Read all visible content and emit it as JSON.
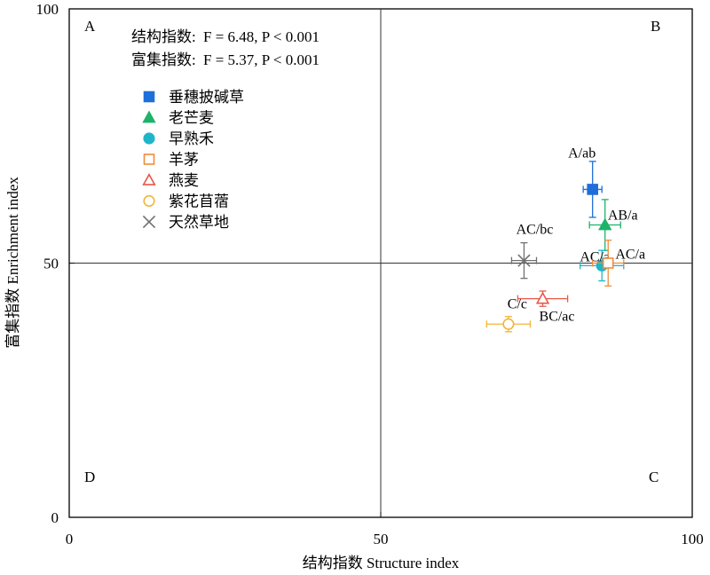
{
  "chart_data": {
    "type": "scatter",
    "xlabel": "结构指数 Structure index",
    "ylabel": "富集指数 Enrichment index",
    "xlim": [
      0,
      100
    ],
    "ylim": [
      0,
      100
    ],
    "x_ticks": [
      "0",
      "50",
      "100"
    ],
    "y_ticks": [
      "0",
      "50",
      "100"
    ],
    "reference_lines": {
      "x": 50,
      "y": 50
    },
    "quadrant_labels": [
      "A",
      "B",
      "C",
      "D"
    ],
    "stats": [
      {
        "label": "结构指数:",
        "text": "F = 6.48, P < 0.001"
      },
      {
        "label": "富集指数:",
        "text": "F = 5.37, P < 0.001"
      }
    ],
    "legend_position": "upper-left",
    "series": [
      {
        "name": "垂穗披碱草",
        "marker": "square",
        "filled": true,
        "color": "#1E6FD9",
        "x": 84.0,
        "y": 64.5,
        "xerr": 1.5,
        "yerr": 5.5,
        "label": "A/ab"
      },
      {
        "name": "老芒麦",
        "marker": "triangle",
        "filled": true,
        "color": "#1DB36B",
        "x": 86.0,
        "y": 57.5,
        "xerr": 2.5,
        "yerr": 5.0,
        "label": "AB/a"
      },
      {
        "name": "早熟禾",
        "marker": "circle",
        "filled": true,
        "color": "#1FB5C9",
        "x": 85.5,
        "y": 49.5,
        "xerr": 3.5,
        "yerr": 3.0,
        "label": "AC/a"
      },
      {
        "name": "羊茅",
        "marker": "square",
        "filled": false,
        "color": "#F08A3C",
        "x": 86.5,
        "y": 50.0,
        "xerr": 2.5,
        "yerr": 4.5,
        "label": "AC/a"
      },
      {
        "name": "燕麦",
        "marker": "triangle",
        "filled": false,
        "color": "#E8584A",
        "x": 76.0,
        "y": 43.0,
        "xerr": 4.0,
        "yerr": 1.5,
        "label": "BC/ac"
      },
      {
        "name": "紫花苜蓿",
        "marker": "circle",
        "filled": false,
        "color": "#F2B53A",
        "x": 70.5,
        "y": 38.0,
        "xerr": 3.5,
        "yerr": 1.5,
        "label": "C/c"
      },
      {
        "name": "天然草地",
        "marker": "x",
        "filled": false,
        "color": "#707070",
        "x": 73.0,
        "y": 50.5,
        "xerr": 2.0,
        "yerr": 3.5,
        "label": "AC/bc"
      }
    ]
  }
}
